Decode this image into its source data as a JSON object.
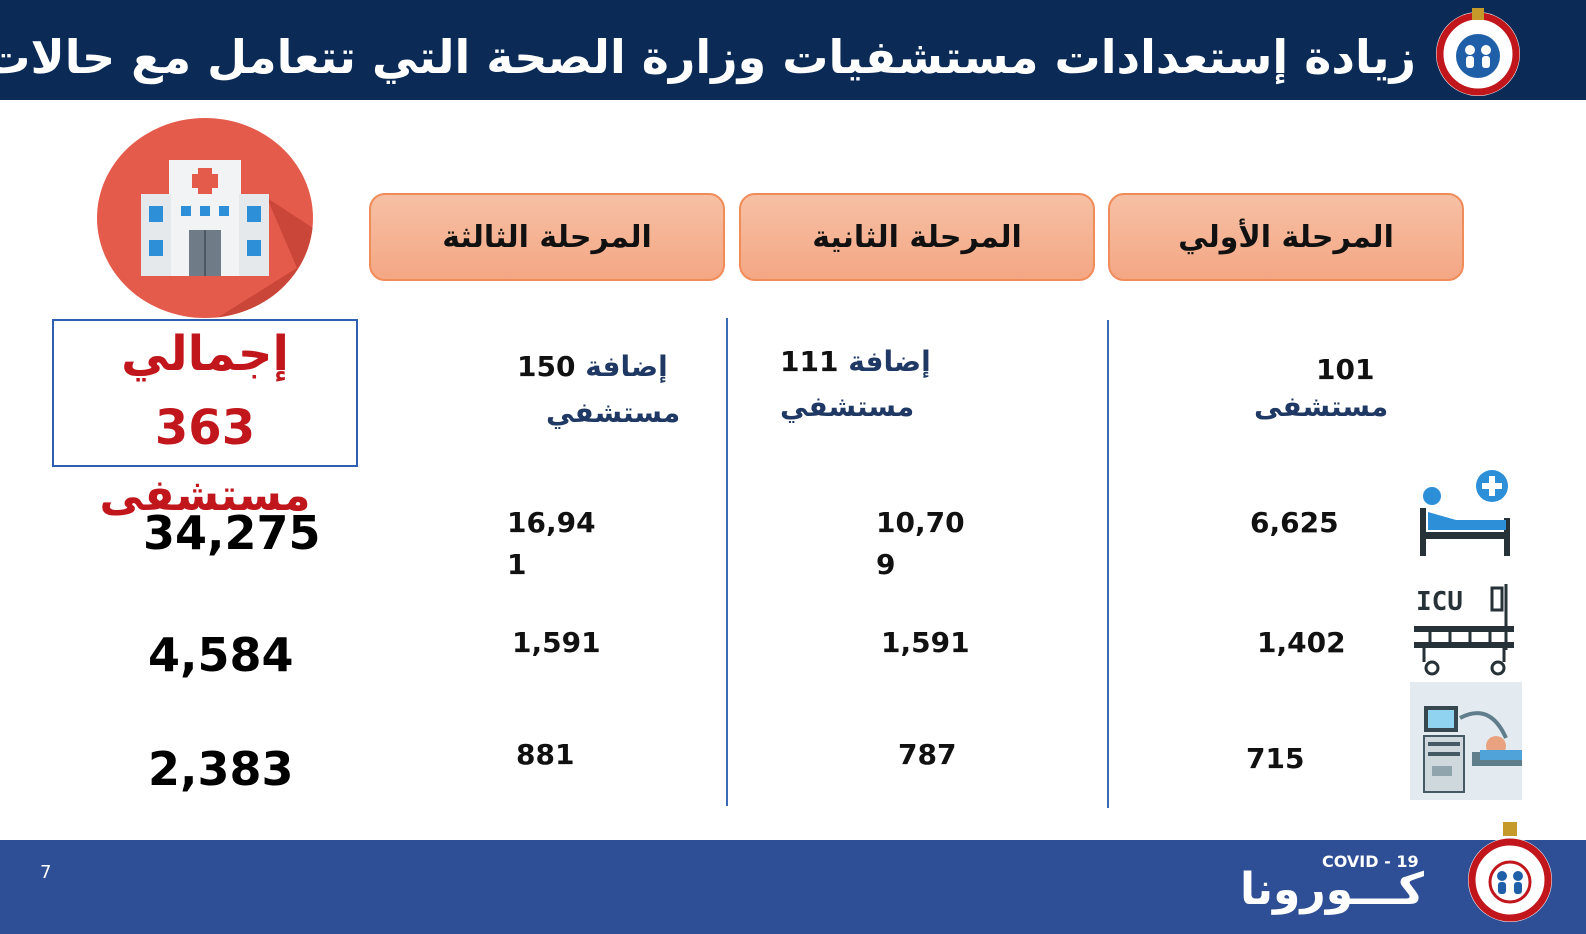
{
  "header": {
    "title": "زيادة إستعدادات مستشفيات وزارة الصحة التي تتعامل مع حالات الكورونا"
  },
  "phases": [
    {
      "label": "المرحلة الأولي"
    },
    {
      "label": "المرحلة الثانية"
    },
    {
      "label": "المرحلة الثالثة"
    }
  ],
  "total": {
    "word": "إجمالي",
    "number": "363",
    "unit": "مستشفى"
  },
  "hospitals": {
    "phase1": {
      "count": "101",
      "unit": "مستشفى"
    },
    "phase2": {
      "add": "إضافة",
      "count": "111",
      "unit": "مستشفي"
    },
    "phase3": {
      "add": "إضافة",
      "count": "150",
      "unit": "مستشفي"
    }
  },
  "rows": {
    "beds": {
      "total": "34,275",
      "phase3_a": "16,94",
      "phase3_b": "1",
      "phase2_a": "10,70",
      "phase2_b": "9",
      "phase1": "6,625"
    },
    "icu": {
      "total": "4,584",
      "phase3": "1,591",
      "phase2": "1,591",
      "phase1": "1,402"
    },
    "ventilators": {
      "total": "2,383",
      "phase3": "881",
      "phase2": "787",
      "phase1": "715"
    }
  },
  "icons": {
    "hospital": "hospital-icon",
    "bed": "hospital-bed-icon",
    "icu": "icu-bed-icon",
    "ventilator": "ventilator-icon",
    "icu_label": "ICU"
  },
  "footer": {
    "page_number": "7",
    "brand_ar": "كـــورونا",
    "brand_en": "COVID - 19"
  },
  "colors": {
    "header_bg": "#0b2a55",
    "footer_bg": "#2e4f95",
    "total_red": "#c0161c",
    "phase_fill": "#f4a784"
  }
}
